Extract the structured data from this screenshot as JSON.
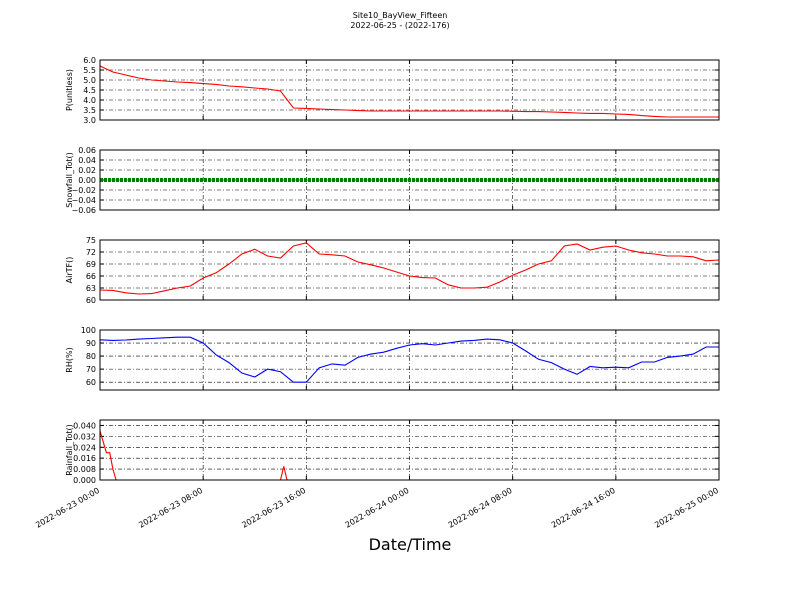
{
  "chart_data": {
    "type": "line",
    "title": "Site10_BayView_Fifteen",
    "subtitle": "2022-06-25 - (2022-176)",
    "xlabel": "Date/Time",
    "x": [
      "2022-06-23 00:00",
      "2022-06-23 01:00",
      "2022-06-23 02:00",
      "2022-06-23 03:00",
      "2022-06-23 04:00",
      "2022-06-23 05:00",
      "2022-06-23 06:00",
      "2022-06-23 07:00",
      "2022-06-23 08:00",
      "2022-06-23 09:00",
      "2022-06-23 10:00",
      "2022-06-23 11:00",
      "2022-06-23 12:00",
      "2022-06-23 13:00",
      "2022-06-23 14:00",
      "2022-06-23 15:00",
      "2022-06-23 16:00",
      "2022-06-23 17:00",
      "2022-06-23 18:00",
      "2022-06-23 19:00",
      "2022-06-23 20:00",
      "2022-06-23 21:00",
      "2022-06-23 22:00",
      "2022-06-23 23:00",
      "2022-06-24 00:00",
      "2022-06-24 01:00",
      "2022-06-24 02:00",
      "2022-06-24 03:00",
      "2022-06-24 04:00",
      "2022-06-24 05:00",
      "2022-06-24 06:00",
      "2022-06-24 07:00",
      "2022-06-24 08:00",
      "2022-06-24 09:00",
      "2022-06-24 10:00",
      "2022-06-24 11:00",
      "2022-06-24 12:00",
      "2022-06-24 13:00",
      "2022-06-24 14:00",
      "2022-06-24 15:00",
      "2022-06-24 16:00",
      "2022-06-24 17:00",
      "2022-06-24 18:00",
      "2022-06-24 19:00",
      "2022-06-24 20:00",
      "2022-06-24 21:00",
      "2022-06-24 22:00",
      "2022-06-24 23:00",
      "2022-06-25 00:00"
    ],
    "xlim": [
      "2022-06-23 00:00",
      "2022-06-25 00:00"
    ],
    "xticks": [
      "2022-06-23 00:00",
      "2022-06-23 08:00",
      "2022-06-23 16:00",
      "2022-06-24 00:00",
      "2022-06-24 08:00",
      "2022-06-24 16:00",
      "2022-06-25 00:00"
    ],
    "grid": true,
    "panels": [
      {
        "ylabel": "P(unitless)",
        "ylim": [
          3.0,
          6.0
        ],
        "yticks": [
          {
            "value": 3.0,
            "label": "3.0"
          },
          3.5,
          {
            "value": 4.0,
            "label": "4.0"
          },
          4.5,
          {
            "value": 5.0,
            "label": "5.0"
          },
          5.5,
          {
            "value": 6.0,
            "label": "6.0"
          }
        ],
        "series": [
          {
            "color": "#ff0000",
            "values": [
              5.7,
              5.4,
              5.25,
              5.1,
              5.0,
              4.95,
              4.9,
              4.87,
              4.82,
              4.78,
              4.7,
              4.66,
              4.6,
              4.55,
              4.45,
              3.6,
              3.58,
              3.55,
              3.52,
              3.5,
              3.47,
              3.45,
              3.45,
              3.45,
              3.45,
              3.45,
              3.45,
              3.45,
              3.45,
              3.45,
              3.45,
              3.45,
              3.44,
              3.42,
              3.42,
              3.4,
              3.38,
              3.35,
              3.33,
              3.33,
              3.3,
              3.28,
              3.22,
              3.18,
              3.15,
              3.15,
              3.15,
              3.15,
              3.15
            ]
          }
        ]
      },
      {
        "ylabel": "Snowfall_Tot()",
        "ylim": [
          -0.06,
          0.06
        ],
        "yticks": [
          {
            "value": -0.06,
            "label": "−0.06"
          },
          {
            "value": -0.04,
            "label": "−0.04"
          },
          {
            "value": -0.02,
            "label": "−0.02"
          },
          {
            "value": 0,
            "label": "0.00"
          },
          {
            "value": 0.02,
            "label": "0.02"
          },
          {
            "value": 0.04,
            "label": "0.04"
          },
          {
            "value": 0.06,
            "label": "0.06"
          }
        ],
        "series": [
          {
            "color": "#008000",
            "values": [
              0,
              0,
              0,
              0,
              0,
              0,
              0,
              0,
              0,
              0,
              0,
              0,
              0,
              0,
              0,
              0,
              0,
              0,
              0,
              0,
              0,
              0,
              0,
              0,
              0,
              0,
              0,
              0,
              0,
              0,
              0,
              0,
              0,
              0,
              0,
              0,
              0,
              0,
              0,
              0,
              0,
              0,
              0,
              0,
              0,
              0,
              0,
              0,
              0
            ]
          }
        ]
      },
      {
        "ylabel": "AirTF()",
        "ylim": [
          60,
          75
        ],
        "yticks": [
          60,
          63,
          66,
          69,
          72,
          75
        ],
        "series": [
          {
            "color": "#ff0000",
            "values": [
              62.5,
              62.4,
              61.8,
              61.5,
              61.6,
              62.3,
              63,
              63.5,
              65.5,
              66.8,
              69,
              71.5,
              72.7,
              71,
              70.5,
              73.5,
              74.3,
              71.5,
              71.3,
              71,
              69.5,
              68.8,
              68,
              67,
              66,
              65.6,
              65.5,
              63.8,
              63,
              63,
              63.2,
              64.5,
              66.2,
              67.5,
              69,
              69.8,
              73.5,
              74,
              72.5,
              73.2,
              73.5,
              72.5,
              71.8,
              71.5,
              71,
              71,
              70.8,
              69.8,
              70
            ]
          }
        ]
      },
      {
        "ylabel": "RH(%)",
        "ylim": [
          54,
          100
        ],
        "yticks": [
          60,
          70,
          80,
          90,
          100
        ],
        "series": [
          {
            "color": "#0000ff",
            "values": [
              92.5,
              92,
              92.3,
              93,
              93.5,
              94,
              94.5,
              94.5,
              90,
              81,
              75,
              67,
              64,
              70,
              68,
              60,
              60,
              71,
              74,
              73,
              79,
              81.5,
              83,
              86,
              88.5,
              89.5,
              88.5,
              90,
              91.5,
              92,
              93,
              92.5,
              90,
              84,
              77.5,
              75,
              70,
              66,
              72,
              71,
              71.5,
              71,
              75.5,
              75.5,
              79,
              80,
              81.5,
              87,
              87
            ]
          }
        ]
      },
      {
        "ylabel": "Rainfall_Tot()",
        "ylim": [
          0,
          0.044
        ],
        "yticks": [
          {
            "value": 0,
            "label": "0.000"
          },
          {
            "value": 0.008,
            "label": "0.008"
          },
          {
            "value": 0.016,
            "label": "0.016"
          },
          {
            "value": 0.024,
            "label": "0.024"
          },
          {
            "value": 0.032,
            "label": "0.032"
          },
          {
            "value": 0.04,
            "label": "0.040"
          }
        ],
        "x": [
          "2022-06-23 00:00",
          "2022-06-23 00:15",
          "2022-06-23 00:30",
          "2022-06-23 00:45",
          "2022-06-23 01:00",
          "2022-06-23 01:15",
          "2022-06-23 14:00",
          "2022-06-23 14:15",
          "2022-06-23 14:30",
          "2022-06-23 14:45",
          "2022-06-25 00:00"
        ],
        "series": [
          {
            "color": "#ff0000",
            "values": [
              0.036,
              0.028,
              0.02,
              0.02,
              0.008,
              0,
              0,
              0.01,
              0,
              0,
              0
            ]
          }
        ],
        "xtick_labels": true
      }
    ]
  }
}
